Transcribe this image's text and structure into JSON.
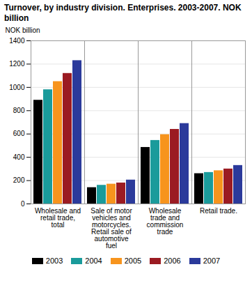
{
  "chart_data": {
    "type": "bar",
    "title": "Turnover, by industry division. Enterprises. 2003-2007. NOK billion",
    "y_label": "NOK billion",
    "categories": [
      "Wholesale and retail trade, total",
      "Sale of motor vehicles and motorcycles. Retail sale of automotive fuel",
      "Wholesale trade and commission trade",
      "Retail trade."
    ],
    "series": [
      {
        "name": "2003",
        "color": "#000000",
        "values": [
          890,
          140,
          485,
          260
        ]
      },
      {
        "name": "2004",
        "color": "#1a9b9b",
        "values": [
          980,
          160,
          545,
          270
        ]
      },
      {
        "name": "2005",
        "color": "#f7941d",
        "values": [
          1050,
          170,
          595,
          285
        ]
      },
      {
        "name": "2006",
        "color": "#9b1b22",
        "values": [
          1120,
          180,
          640,
          300
        ]
      },
      {
        "name": "2007",
        "color": "#2b3a9b",
        "values": [
          1230,
          205,
          690,
          330
        ]
      }
    ],
    "ylim": [
      0,
      1400
    ],
    "yticks": [
      0,
      200,
      400,
      600,
      800,
      1000,
      1200,
      1400
    ],
    "grid": true,
    "legend": "bottom"
  }
}
